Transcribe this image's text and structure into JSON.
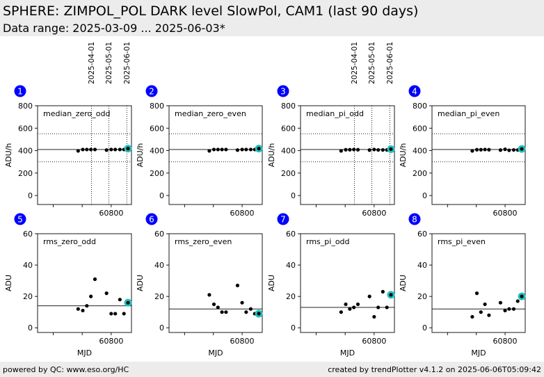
{
  "header": {
    "title": "SPHERE: ZIMPOL_POL DARK level SlowPol, CAM1 (last 90 days)",
    "subtitle": "Data range: 2025-03-09 ... 2025-06-03*"
  },
  "footer": {
    "left": "powered by QC: www.eso.org/HC",
    "right": "created by trendPlotter v4.1.2 on 2025-06-06T05:09:42"
  },
  "colors": {
    "badge": "#0000ff",
    "last_point": "#20c0c0",
    "header_bg": "#ececec"
  },
  "chart_data": [
    {
      "type": "scatter",
      "panel": "1",
      "title": "median_zero_odd",
      "xlabel": "",
      "ylabel": "ADU/h",
      "xlim": [
        60673,
        60835
      ],
      "ylim": [
        -80,
        800
      ],
      "yticks": [
        0,
        200,
        400,
        600,
        800
      ],
      "xticks": [
        60800
      ],
      "date_markers": [
        {
          "x": 60766,
          "label": "2025-04-01"
        },
        {
          "x": 60796,
          "label": "2025-05-01"
        },
        {
          "x": 60827,
          "label": "2025-06-01"
        }
      ],
      "ref_line": 410,
      "limits": [
        300,
        550
      ],
      "points": [
        [
          60743,
          398
        ],
        [
          60751,
          410
        ],
        [
          60758,
          410
        ],
        [
          60765,
          410
        ],
        [
          60772,
          410
        ],
        [
          60792,
          405
        ],
        [
          60800,
          410
        ],
        [
          60807,
          410
        ],
        [
          60815,
          410
        ],
        [
          60822,
          410
        ],
        [
          60829,
          418
        ]
      ]
    },
    {
      "type": "scatter",
      "panel": "2",
      "title": "median_zero_even",
      "xlabel": "",
      "ylabel": "ADU/h",
      "xlim": [
        60673,
        60835
      ],
      "ylim": [
        -80,
        800
      ],
      "yticks": [
        0,
        200,
        400,
        600,
        800
      ],
      "xticks": [
        60800
      ],
      "date_markers": [],
      "ref_line": 410,
      "limits": [
        300,
        550
      ],
      "points": [
        [
          60743,
          398
        ],
        [
          60751,
          410
        ],
        [
          60758,
          410
        ],
        [
          60765,
          410
        ],
        [
          60772,
          410
        ],
        [
          60792,
          405
        ],
        [
          60800,
          410
        ],
        [
          60807,
          410
        ],
        [
          60815,
          410
        ],
        [
          60822,
          410
        ],
        [
          60829,
          418
        ]
      ]
    },
    {
      "type": "scatter",
      "panel": "3",
      "title": "median_pi_odd",
      "xlabel": "",
      "ylabel": "ADU/h",
      "xlim": [
        60673,
        60835
      ],
      "ylim": [
        -80,
        800
      ],
      "yticks": [
        0,
        200,
        400,
        600,
        800
      ],
      "xticks": [
        60800
      ],
      "date_markers": [
        {
          "x": 60766,
          "label": "2025-04-01"
        },
        {
          "x": 60796,
          "label": "2025-05-01"
        },
        {
          "x": 60827,
          "label": "2025-06-01"
        }
      ],
      "ref_line": 410,
      "limits": [
        300,
        550
      ],
      "points": [
        [
          60743,
          398
        ],
        [
          60751,
          408
        ],
        [
          60758,
          408
        ],
        [
          60765,
          410
        ],
        [
          60772,
          408
        ],
        [
          60792,
          405
        ],
        [
          60800,
          410
        ],
        [
          60807,
          406
        ],
        [
          60815,
          406
        ],
        [
          60822,
          406
        ],
        [
          60829,
          413
        ]
      ]
    },
    {
      "type": "scatter",
      "panel": "4",
      "title": "median_pi_even",
      "xlabel": "",
      "ylabel": "ADU/h",
      "xlim": [
        60673,
        60835
      ],
      "ylim": [
        -80,
        800
      ],
      "yticks": [
        0,
        200,
        400,
        600,
        800
      ],
      "xticks": [
        60800
      ],
      "date_markers": [],
      "ref_line": 410,
      "limits": [
        300,
        550
      ],
      "points": [
        [
          60743,
          398
        ],
        [
          60751,
          408
        ],
        [
          60758,
          408
        ],
        [
          60765,
          410
        ],
        [
          60772,
          408
        ],
        [
          60792,
          405
        ],
        [
          60800,
          412
        ],
        [
          60807,
          403
        ],
        [
          60815,
          406
        ],
        [
          60822,
          406
        ],
        [
          60829,
          415
        ]
      ]
    },
    {
      "type": "scatter",
      "panel": "5",
      "title": "rms_zero_odd",
      "xlabel": "MJD",
      "ylabel": "ADU",
      "xlim": [
        60673,
        60835
      ],
      "ylim": [
        -3,
        60
      ],
      "yticks": [
        0,
        20,
        40,
        60
      ],
      "xticks": [
        60800
      ],
      "date_markers": [],
      "ref_line": 14,
      "limits": [],
      "points": [
        [
          60743,
          12
        ],
        [
          60751,
          11
        ],
        [
          60758,
          14
        ],
        [
          60765,
          20
        ],
        [
          60772,
          31
        ],
        [
          60792,
          22
        ],
        [
          60800,
          9
        ],
        [
          60807,
          9
        ],
        [
          60815,
          18
        ],
        [
          60822,
          9
        ],
        [
          60829,
          16
        ]
      ]
    },
    {
      "type": "scatter",
      "panel": "6",
      "title": "rms_zero_even",
      "xlabel": "MJD",
      "ylabel": "ADU",
      "xlim": [
        60673,
        60835
      ],
      "ylim": [
        -3,
        60
      ],
      "yticks": [
        0,
        20,
        40,
        60
      ],
      "xticks": [
        60800
      ],
      "date_markers": [],
      "ref_line": 12,
      "limits": [],
      "points": [
        [
          60743,
          21
        ],
        [
          60751,
          15
        ],
        [
          60758,
          13
        ],
        [
          60765,
          10
        ],
        [
          60772,
          10
        ],
        [
          60792,
          27
        ],
        [
          60800,
          16
        ],
        [
          60807,
          10
        ],
        [
          60815,
          12
        ],
        [
          60822,
          9
        ],
        [
          60829,
          9
        ]
      ]
    },
    {
      "type": "scatter",
      "panel": "7",
      "title": "rms_pi_odd",
      "xlabel": "MJD",
      "ylabel": "ADU",
      "xlim": [
        60673,
        60835
      ],
      "ylim": [
        -3,
        60
      ],
      "yticks": [
        0,
        20,
        40,
        60
      ],
      "xticks": [
        60800
      ],
      "date_markers": [],
      "ref_line": 13,
      "limits": [],
      "points": [
        [
          60743,
          10
        ],
        [
          60751,
          15
        ],
        [
          60758,
          12
        ],
        [
          60765,
          13
        ],
        [
          60772,
          15
        ],
        [
          60792,
          20
        ],
        [
          60800,
          7
        ],
        [
          60807,
          13
        ],
        [
          60815,
          23
        ],
        [
          60822,
          13
        ],
        [
          60829,
          21
        ]
      ]
    },
    {
      "type": "scatter",
      "panel": "8",
      "title": "rms_pi_even",
      "xlabel": "MJD",
      "ylabel": "ADU",
      "xlim": [
        60673,
        60835
      ],
      "ylim": [
        -3,
        60
      ],
      "yticks": [
        0,
        20,
        40,
        60
      ],
      "xticks": [
        60800
      ],
      "date_markers": [],
      "ref_line": 12,
      "limits": [],
      "points": [
        [
          60743,
          7
        ],
        [
          60751,
          22
        ],
        [
          60758,
          10
        ],
        [
          60765,
          15
        ],
        [
          60772,
          8
        ],
        [
          60792,
          16
        ],
        [
          60800,
          11
        ],
        [
          60807,
          12
        ],
        [
          60815,
          12
        ],
        [
          60822,
          17
        ],
        [
          60829,
          20
        ]
      ]
    }
  ]
}
